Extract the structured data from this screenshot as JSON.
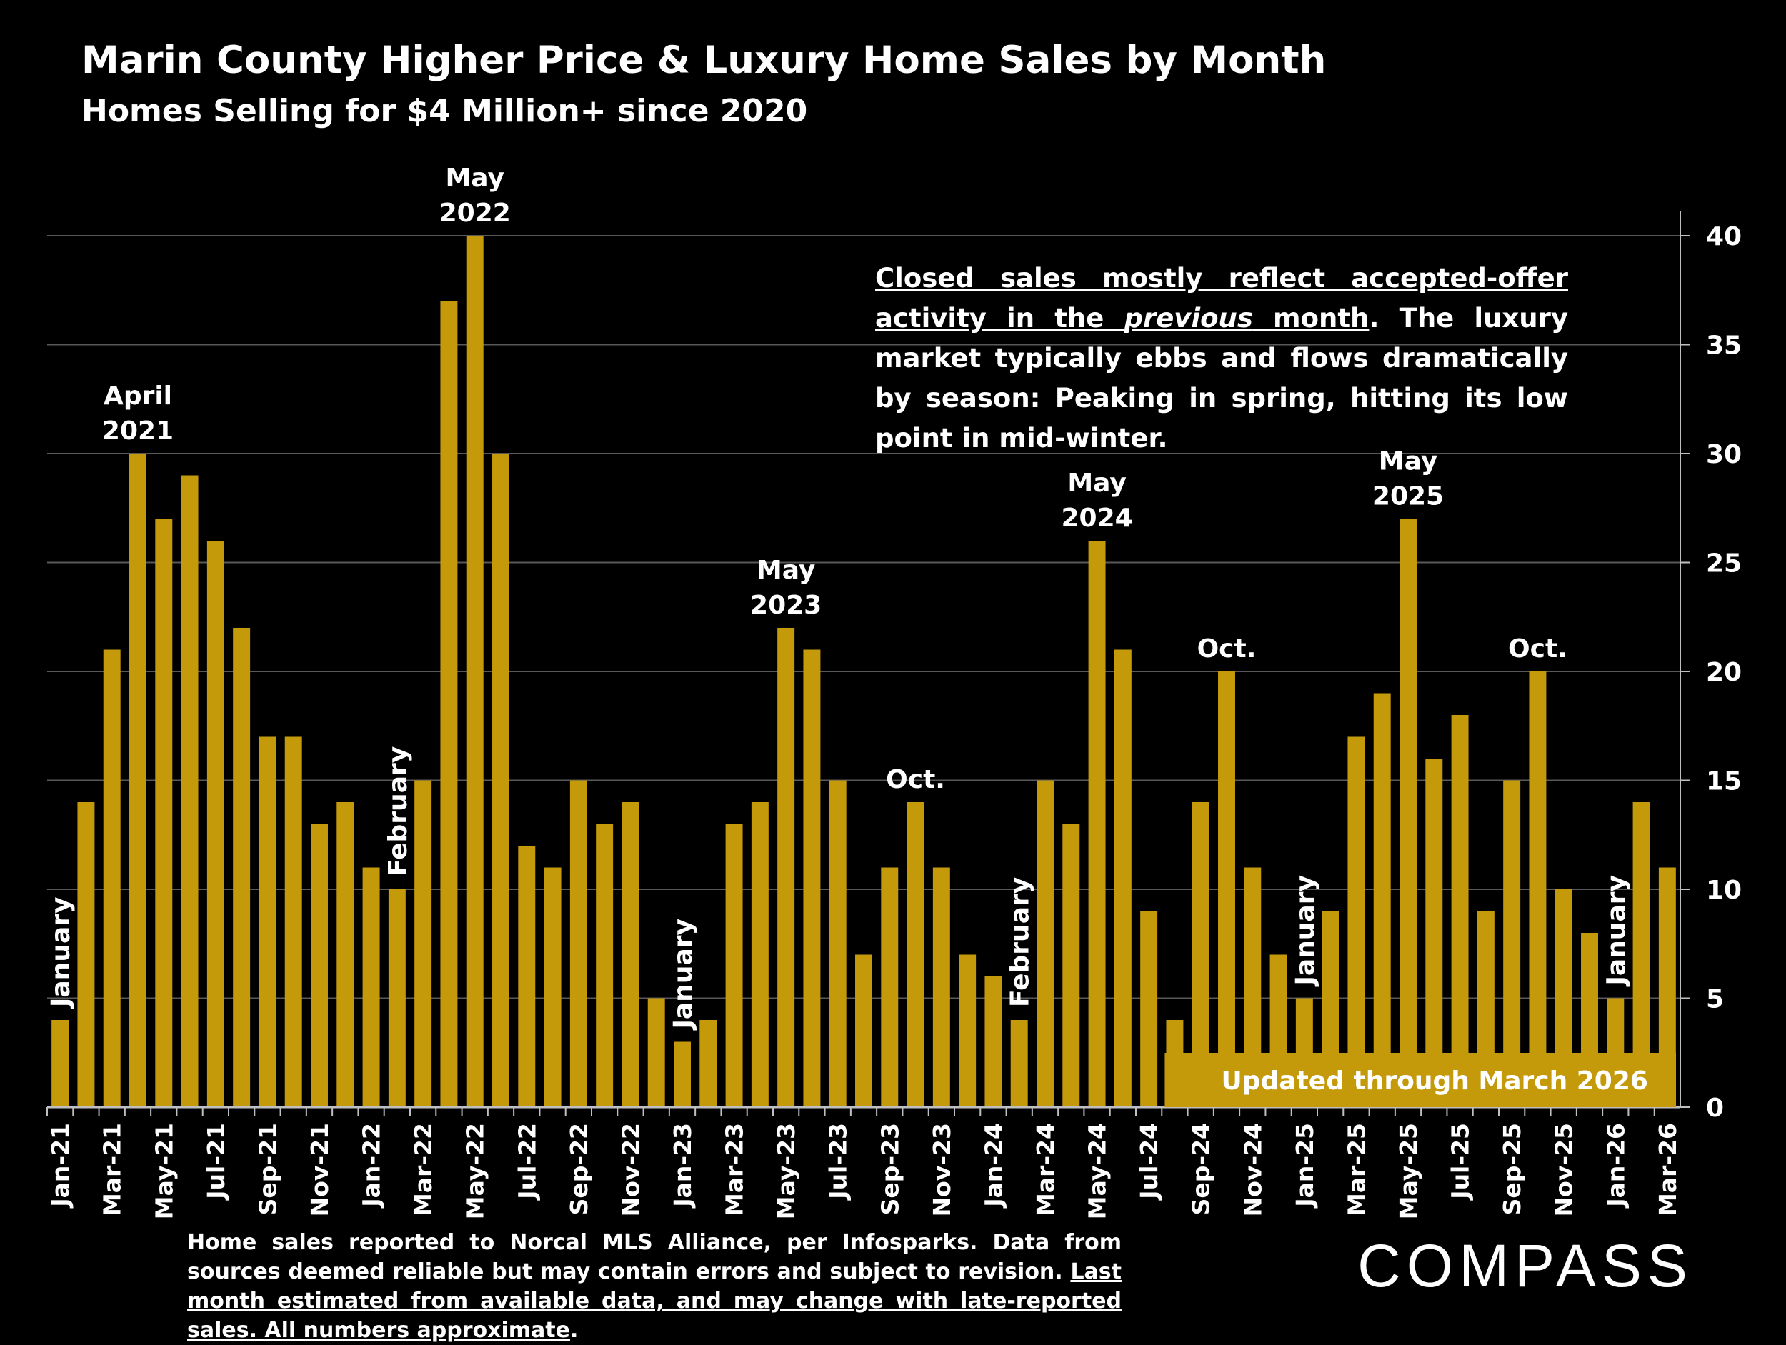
{
  "chart_data": {
    "type": "bar",
    "title": "Marin County Higher Price & Luxury Home Sales by Month",
    "subtitle": "Homes Selling for $4 Million+ since 2020",
    "ylim": [
      0,
      40
    ],
    "y_ticks": [
      "0",
      "5",
      "10",
      "15",
      "20",
      "25",
      "30",
      "35",
      "40"
    ],
    "grid": true,
    "bar_color": "#C49A0B",
    "categories": [
      "Jan-21",
      "Feb-21",
      "Mar-21",
      "Apr-21",
      "May-21",
      "Jun-21",
      "Jul-21",
      "Aug-21",
      "Sep-21",
      "Oct-21",
      "Nov-21",
      "Dec-21",
      "Jan-22",
      "Feb-22",
      "Mar-22",
      "Apr-22",
      "May-22",
      "Jun-22",
      "Jul-22",
      "Aug-22",
      "Sep-22",
      "Oct-22",
      "Nov-22",
      "Dec-22",
      "Jan-23",
      "Feb-23",
      "Mar-23",
      "Apr-23",
      "May-23",
      "Jun-23",
      "Jul-23",
      "Aug-23",
      "Sep-23",
      "Oct-23",
      "Nov-23",
      "Dec-23",
      "Jan-24",
      "Feb-24",
      "Mar-24",
      "Apr-24",
      "May-24",
      "Jun-24",
      "Jul-24",
      "Aug-24",
      "Sep-24",
      "Oct-24",
      "Nov-24",
      "Dec-24",
      "Jan-25",
      "Feb-25",
      "Mar-25",
      "Apr-25",
      "May-25",
      "Jun-25",
      "Jul-25",
      "Aug-25",
      "Sep-25",
      "Oct-25",
      "Nov-25",
      "Dec-25",
      "Jan-26",
      "Feb-26",
      "Mar-26"
    ],
    "visible_tick_labels": [
      "Jan-21",
      "Mar-21",
      "May-21",
      "Jul-21",
      "Sep-21",
      "Nov-21",
      "Jan-22",
      "Mar-22",
      "May-22",
      "Jul-22",
      "Sep-22",
      "Nov-22",
      "Jan-23",
      "Mar-23",
      "May-23",
      "Jul-23",
      "Sep-23",
      "Nov-23",
      "Jan-24",
      "Mar-24",
      "May-24",
      "Jul-24",
      "Sep-24",
      "Nov-24",
      "Jan-25",
      "Mar-25",
      "May-25",
      "Jul-25",
      "Sep-25",
      "Nov-25",
      "Jan-26",
      "Mar-26"
    ],
    "values": [
      4,
      14,
      21,
      30,
      27,
      29,
      26,
      22,
      17,
      17,
      13,
      14,
      11,
      10,
      15,
      37,
      40,
      30,
      12,
      11,
      15,
      13,
      14,
      5,
      3,
      4,
      13,
      14,
      22,
      21,
      15,
      7,
      11,
      14,
      11,
      7,
      6,
      4,
      15,
      13,
      26,
      21,
      9,
      4,
      14,
      20,
      11,
      7,
      5,
      9,
      17,
      19,
      27,
      16,
      18,
      9,
      15,
      20,
      10,
      8,
      5,
      14,
      11
    ],
    "annotations": [
      {
        "index": 0,
        "lines": [
          "January"
        ],
        "rotated": true
      },
      {
        "index": 3,
        "lines": [
          "April",
          "2021"
        ],
        "rotated": false
      },
      {
        "index": 13,
        "lines": [
          "February"
        ],
        "rotated": true
      },
      {
        "index": 16,
        "lines": [
          "May",
          "2022"
        ],
        "rotated": false
      },
      {
        "index": 24,
        "lines": [
          "January"
        ],
        "rotated": true
      },
      {
        "index": 28,
        "lines": [
          "May",
          "2023"
        ],
        "rotated": false
      },
      {
        "index": 33,
        "lines": [
          "Oct."
        ],
        "rotated": false
      },
      {
        "index": 37,
        "lines": [
          "February"
        ],
        "rotated": true
      },
      {
        "index": 40,
        "lines": [
          "May",
          "2024"
        ],
        "rotated": false
      },
      {
        "index": 45,
        "lines": [
          "Oct."
        ],
        "rotated": false
      },
      {
        "index": 48,
        "lines": [
          "January"
        ],
        "rotated": true
      },
      {
        "index": 52,
        "lines": [
          "May",
          "2025"
        ],
        "rotated": false
      },
      {
        "index": 57,
        "lines": [
          "Oct."
        ],
        "rotated": false
      },
      {
        "index": 60,
        "lines": [
          "January"
        ],
        "rotated": true
      }
    ],
    "update_banner": "Updated through March 2026"
  },
  "note": {
    "underlined_part1": "Closed sales mostly reflect accepted-offer activity in the ",
    "underlined_italic": "previous",
    "underlined_part2": " month",
    "rest": ". The luxury market typically ebbs and flows dramatically by season: Peaking in spring, hitting its low point in mid-winter."
  },
  "footer": {
    "plain": "Home sales reported to Norcal MLS Alliance, per Infosparks. Data from sources deemed reliable but may contain errors and subject to revision. ",
    "underlined": "Last month estimated from available data, and may change with late-reported sales. All numbers approximate",
    "end": "."
  },
  "brand": "COMPASS"
}
